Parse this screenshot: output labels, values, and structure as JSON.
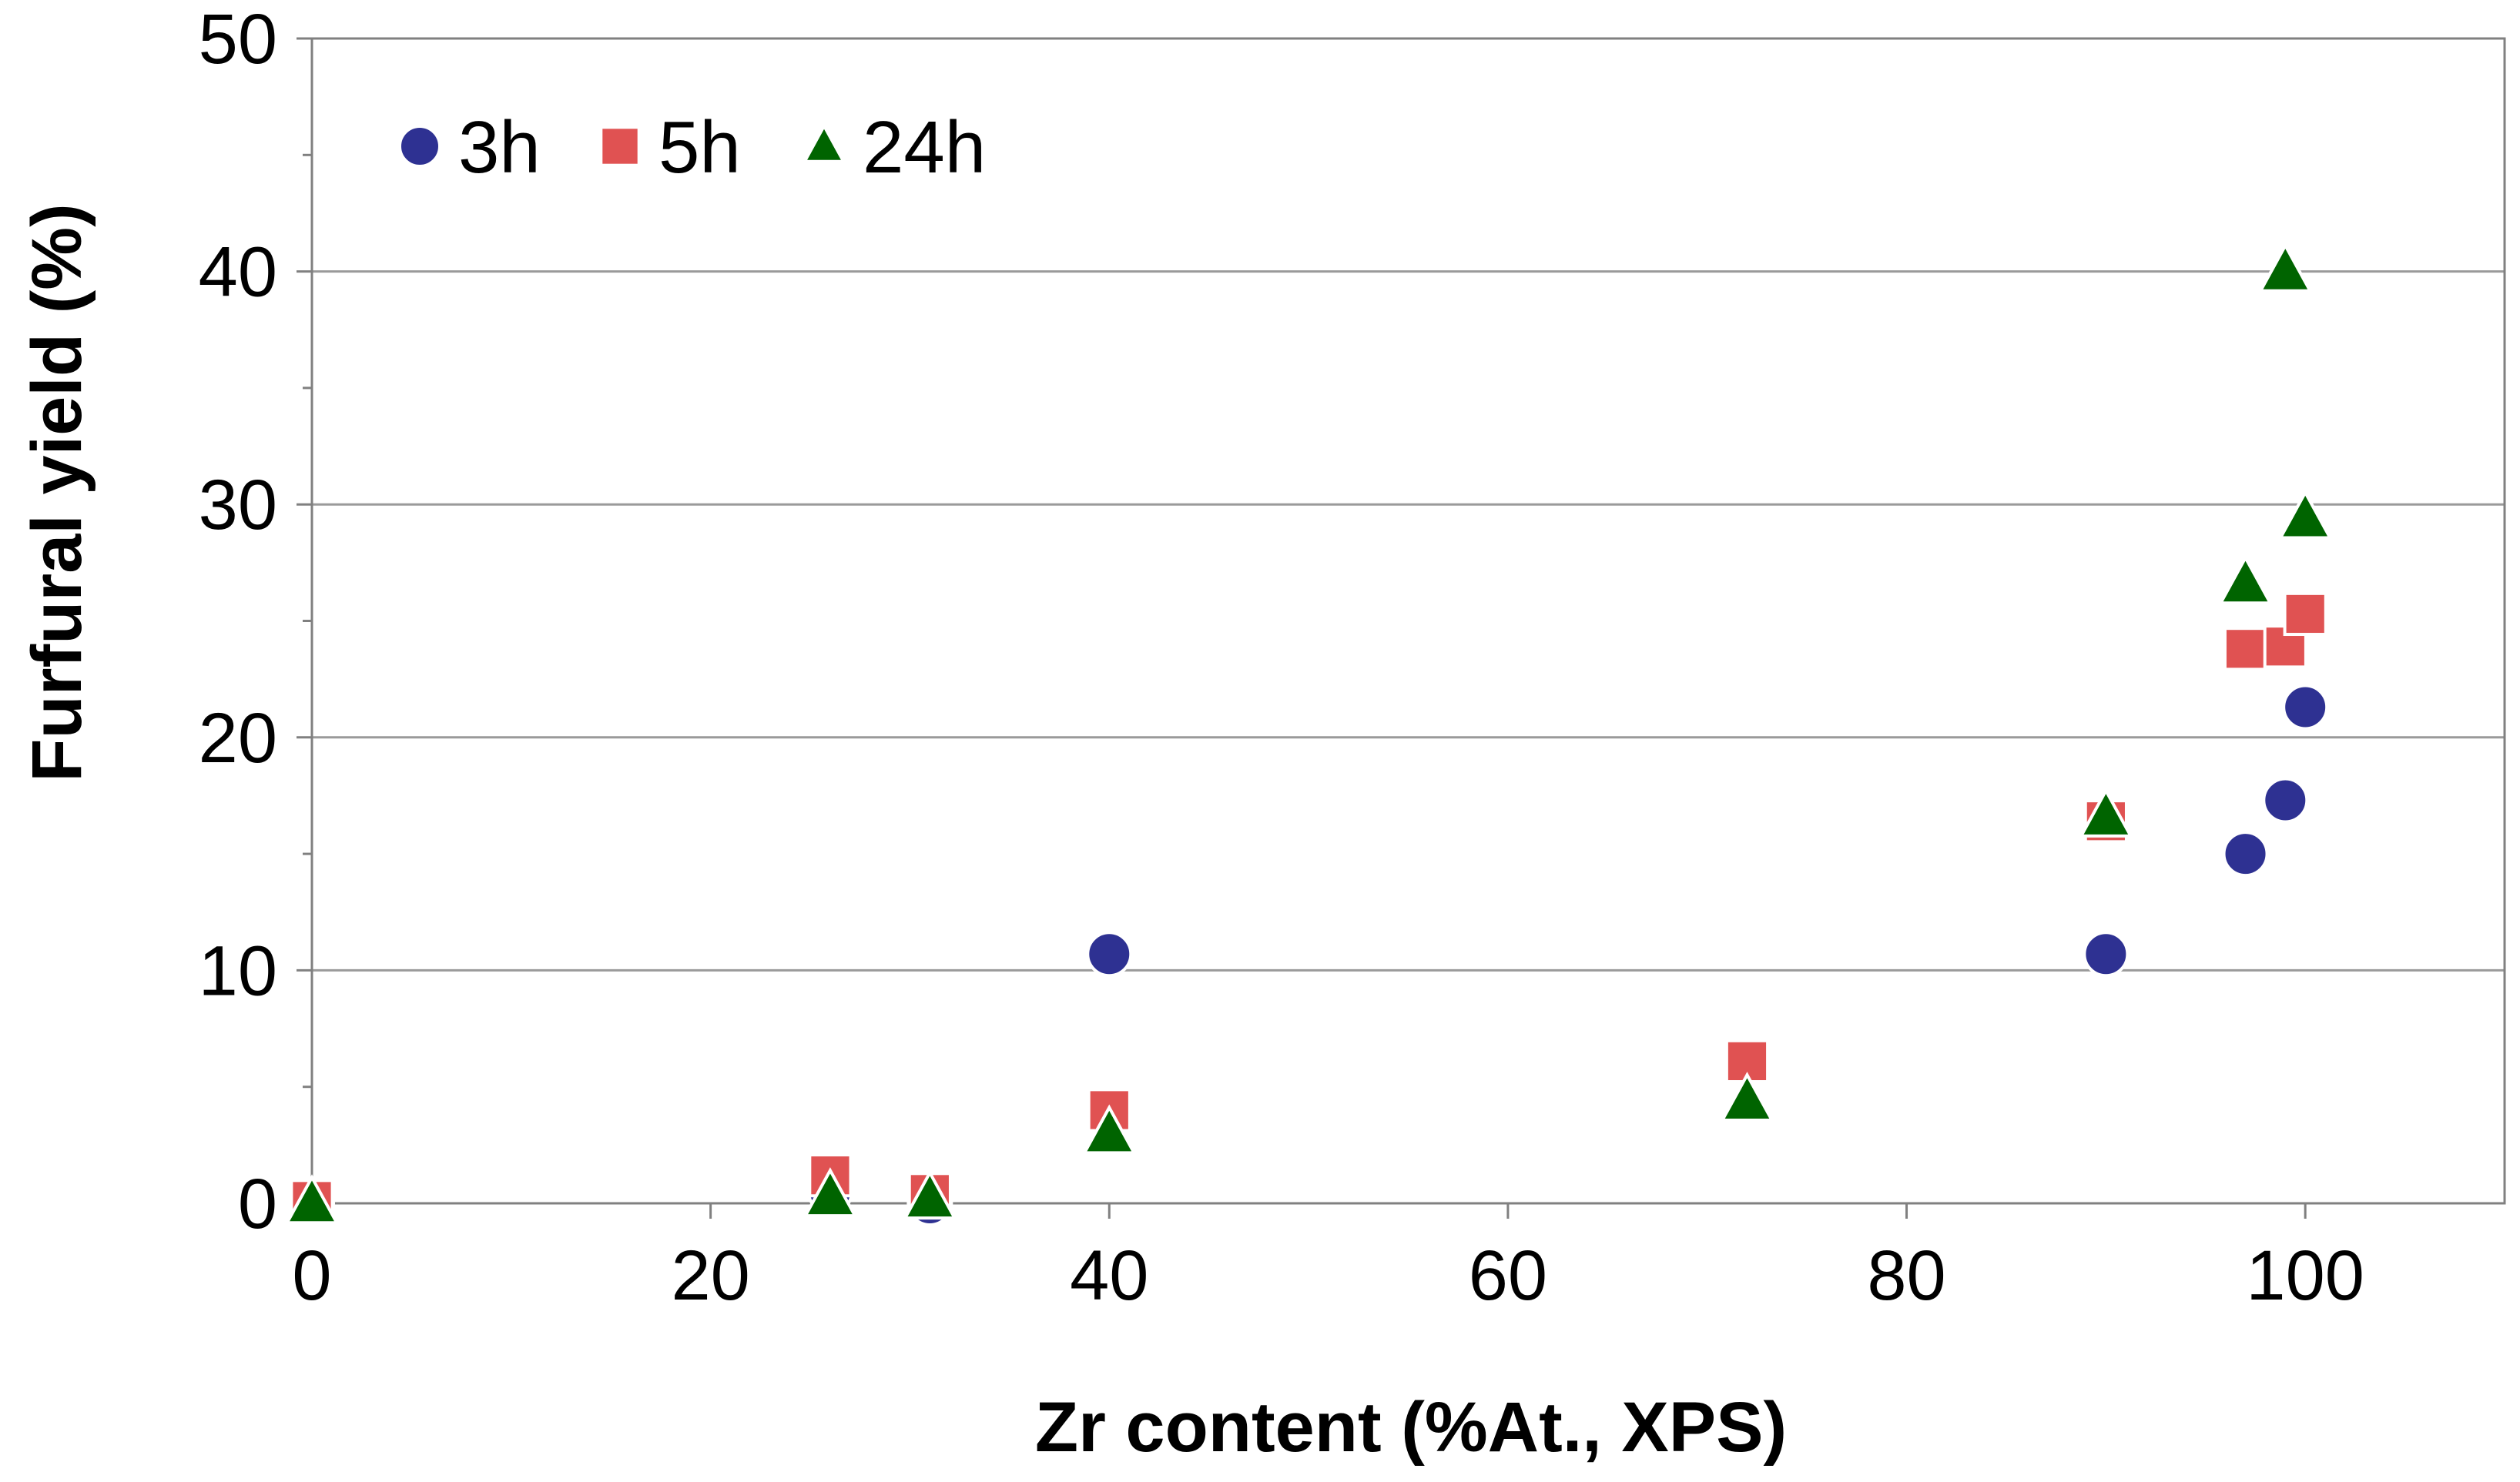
{
  "chart_data": {
    "type": "scatter",
    "title": "",
    "xlabel": "Zr content (%At., XPS)",
    "ylabel": "Furfural yield (%)",
    "xlim": [
      0,
      110
    ],
    "ylim": [
      0,
      50
    ],
    "x_ticks": [
      "0",
      "20",
      "40",
      "60",
      "80",
      "100"
    ],
    "y_ticks": [
      "0",
      "10",
      "20",
      "30",
      "40",
      "50"
    ],
    "grid": "horizontal",
    "legend_position": "top-left",
    "series": [
      {
        "name": "3h",
        "marker": "circle",
        "color": "#2e3192",
        "points": [
          {
            "x": 0,
            "y": 0
          },
          {
            "x": 26,
            "y": 0.5
          },
          {
            "x": 31,
            "y": 0
          },
          {
            "x": 40,
            "y": 10.7
          },
          {
            "x": 90,
            "y": 10.7
          },
          {
            "x": 97,
            "y": 15.0
          },
          {
            "x": 99,
            "y": 17.3
          },
          {
            "x": 100,
            "y": 21.3
          }
        ]
      },
      {
        "name": "5h",
        "marker": "square",
        "color": "#e05252",
        "points": [
          {
            "x": 0,
            "y": 0.1
          },
          {
            "x": 26,
            "y": 1.2
          },
          {
            "x": 31,
            "y": 0.4
          },
          {
            "x": 40,
            "y": 4.0
          },
          {
            "x": 72,
            "y": 6.1
          },
          {
            "x": 90,
            "y": 16.4
          },
          {
            "x": 97,
            "y": 23.8
          },
          {
            "x": 99,
            "y": 23.9
          },
          {
            "x": 100,
            "y": 25.3
          }
        ]
      },
      {
        "name": "24h",
        "marker": "triangle",
        "color": "#006400",
        "points": [
          {
            "x": 0,
            "y": 0
          },
          {
            "x": 26,
            "y": 0.3
          },
          {
            "x": 31,
            "y": 0.2
          },
          {
            "x": 40,
            "y": 3.0
          },
          {
            "x": 72,
            "y": 4.4
          },
          {
            "x": 90,
            "y": 16.6
          },
          {
            "x": 97,
            "y": 26.6
          },
          {
            "x": 99,
            "y": 40.0
          },
          {
            "x": 100,
            "y": 29.4
          }
        ]
      }
    ]
  }
}
